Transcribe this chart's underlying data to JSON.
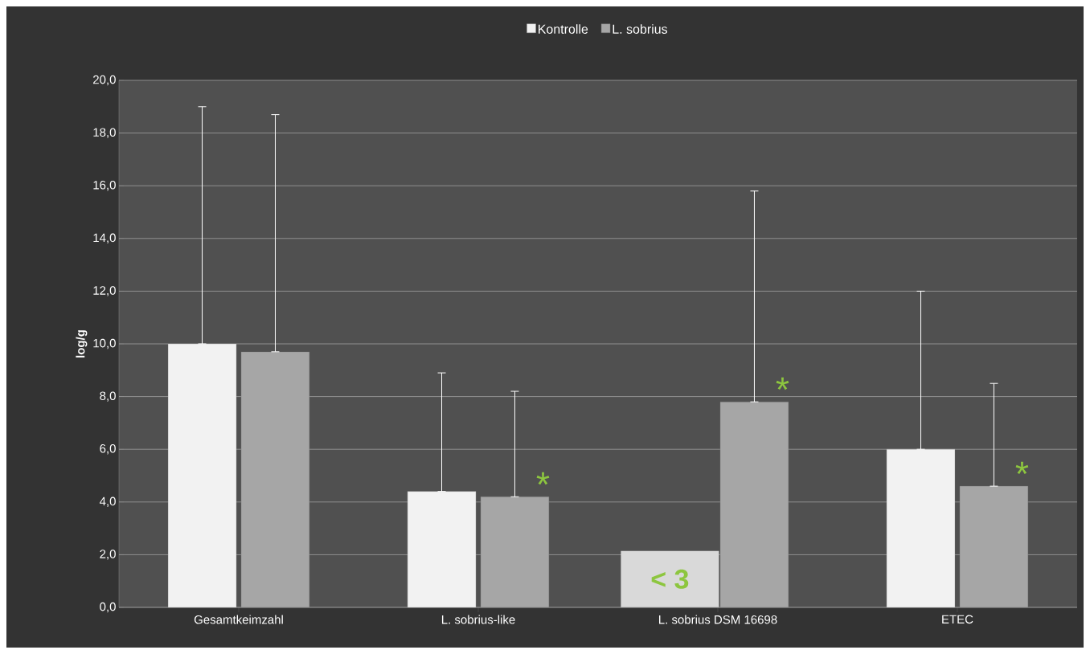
{
  "chart_data": {
    "type": "bar",
    "ylabel": "log/g",
    "categories": [
      "Gesamtkeimzahl",
      "L. sobrius-like",
      "L. sobrius DSM 16698",
      "ETEC"
    ],
    "series": [
      {
        "name": "Kontrolle",
        "color": "#f2f2f2",
        "values": [
          10.0,
          4.4,
          null,
          6.0
        ],
        "errors": [
          [
            10.0,
            19.0
          ],
          [
            4.4,
            8.9
          ],
          null,
          [
            6.0,
            12.0
          ]
        ]
      },
      {
        "name": "L. sobrius",
        "color": "#a6a6a6",
        "values": [
          9.7,
          4.2,
          7.8,
          4.6
        ],
        "errors": [
          [
            9.7,
            18.7
          ],
          [
            4.2,
            8.2
          ],
          [
            7.8,
            15.8
          ],
          [
            4.6,
            8.5
          ]
        ]
      }
    ],
    "ylim": [
      0,
      20
    ],
    "yticks": [
      {
        "value": 0,
        "label": "0,0"
      },
      {
        "value": 2,
        "label": "2,0"
      },
      {
        "value": 4,
        "label": "4,0"
      },
      {
        "value": 6,
        "label": "6,0"
      },
      {
        "value": 8,
        "label": "8,0"
      },
      {
        "value": 10,
        "label": "10,0"
      },
      {
        "value": 12,
        "label": "12,0"
      },
      {
        "value": 14,
        "label": "14,0"
      },
      {
        "value": 16,
        "label": "16,0"
      },
      {
        "value": 18,
        "label": "18,0"
      },
      {
        "value": 20,
        "label": "20,0"
      }
    ],
    "grid": "y",
    "legend": "top",
    "annotations": [
      {
        "text": "< 3",
        "x": "L. sobrius DSM 16698",
        "y": 0
      },
      {
        "text": "*",
        "x": "L. sobrius-like",
        "y": 4.2
      },
      {
        "text": "*",
        "x": "L. sobrius DSM 16698",
        "y": 7.8
      },
      {
        "text": "*",
        "x": "ETEC",
        "y": 4.6
      }
    ]
  }
}
